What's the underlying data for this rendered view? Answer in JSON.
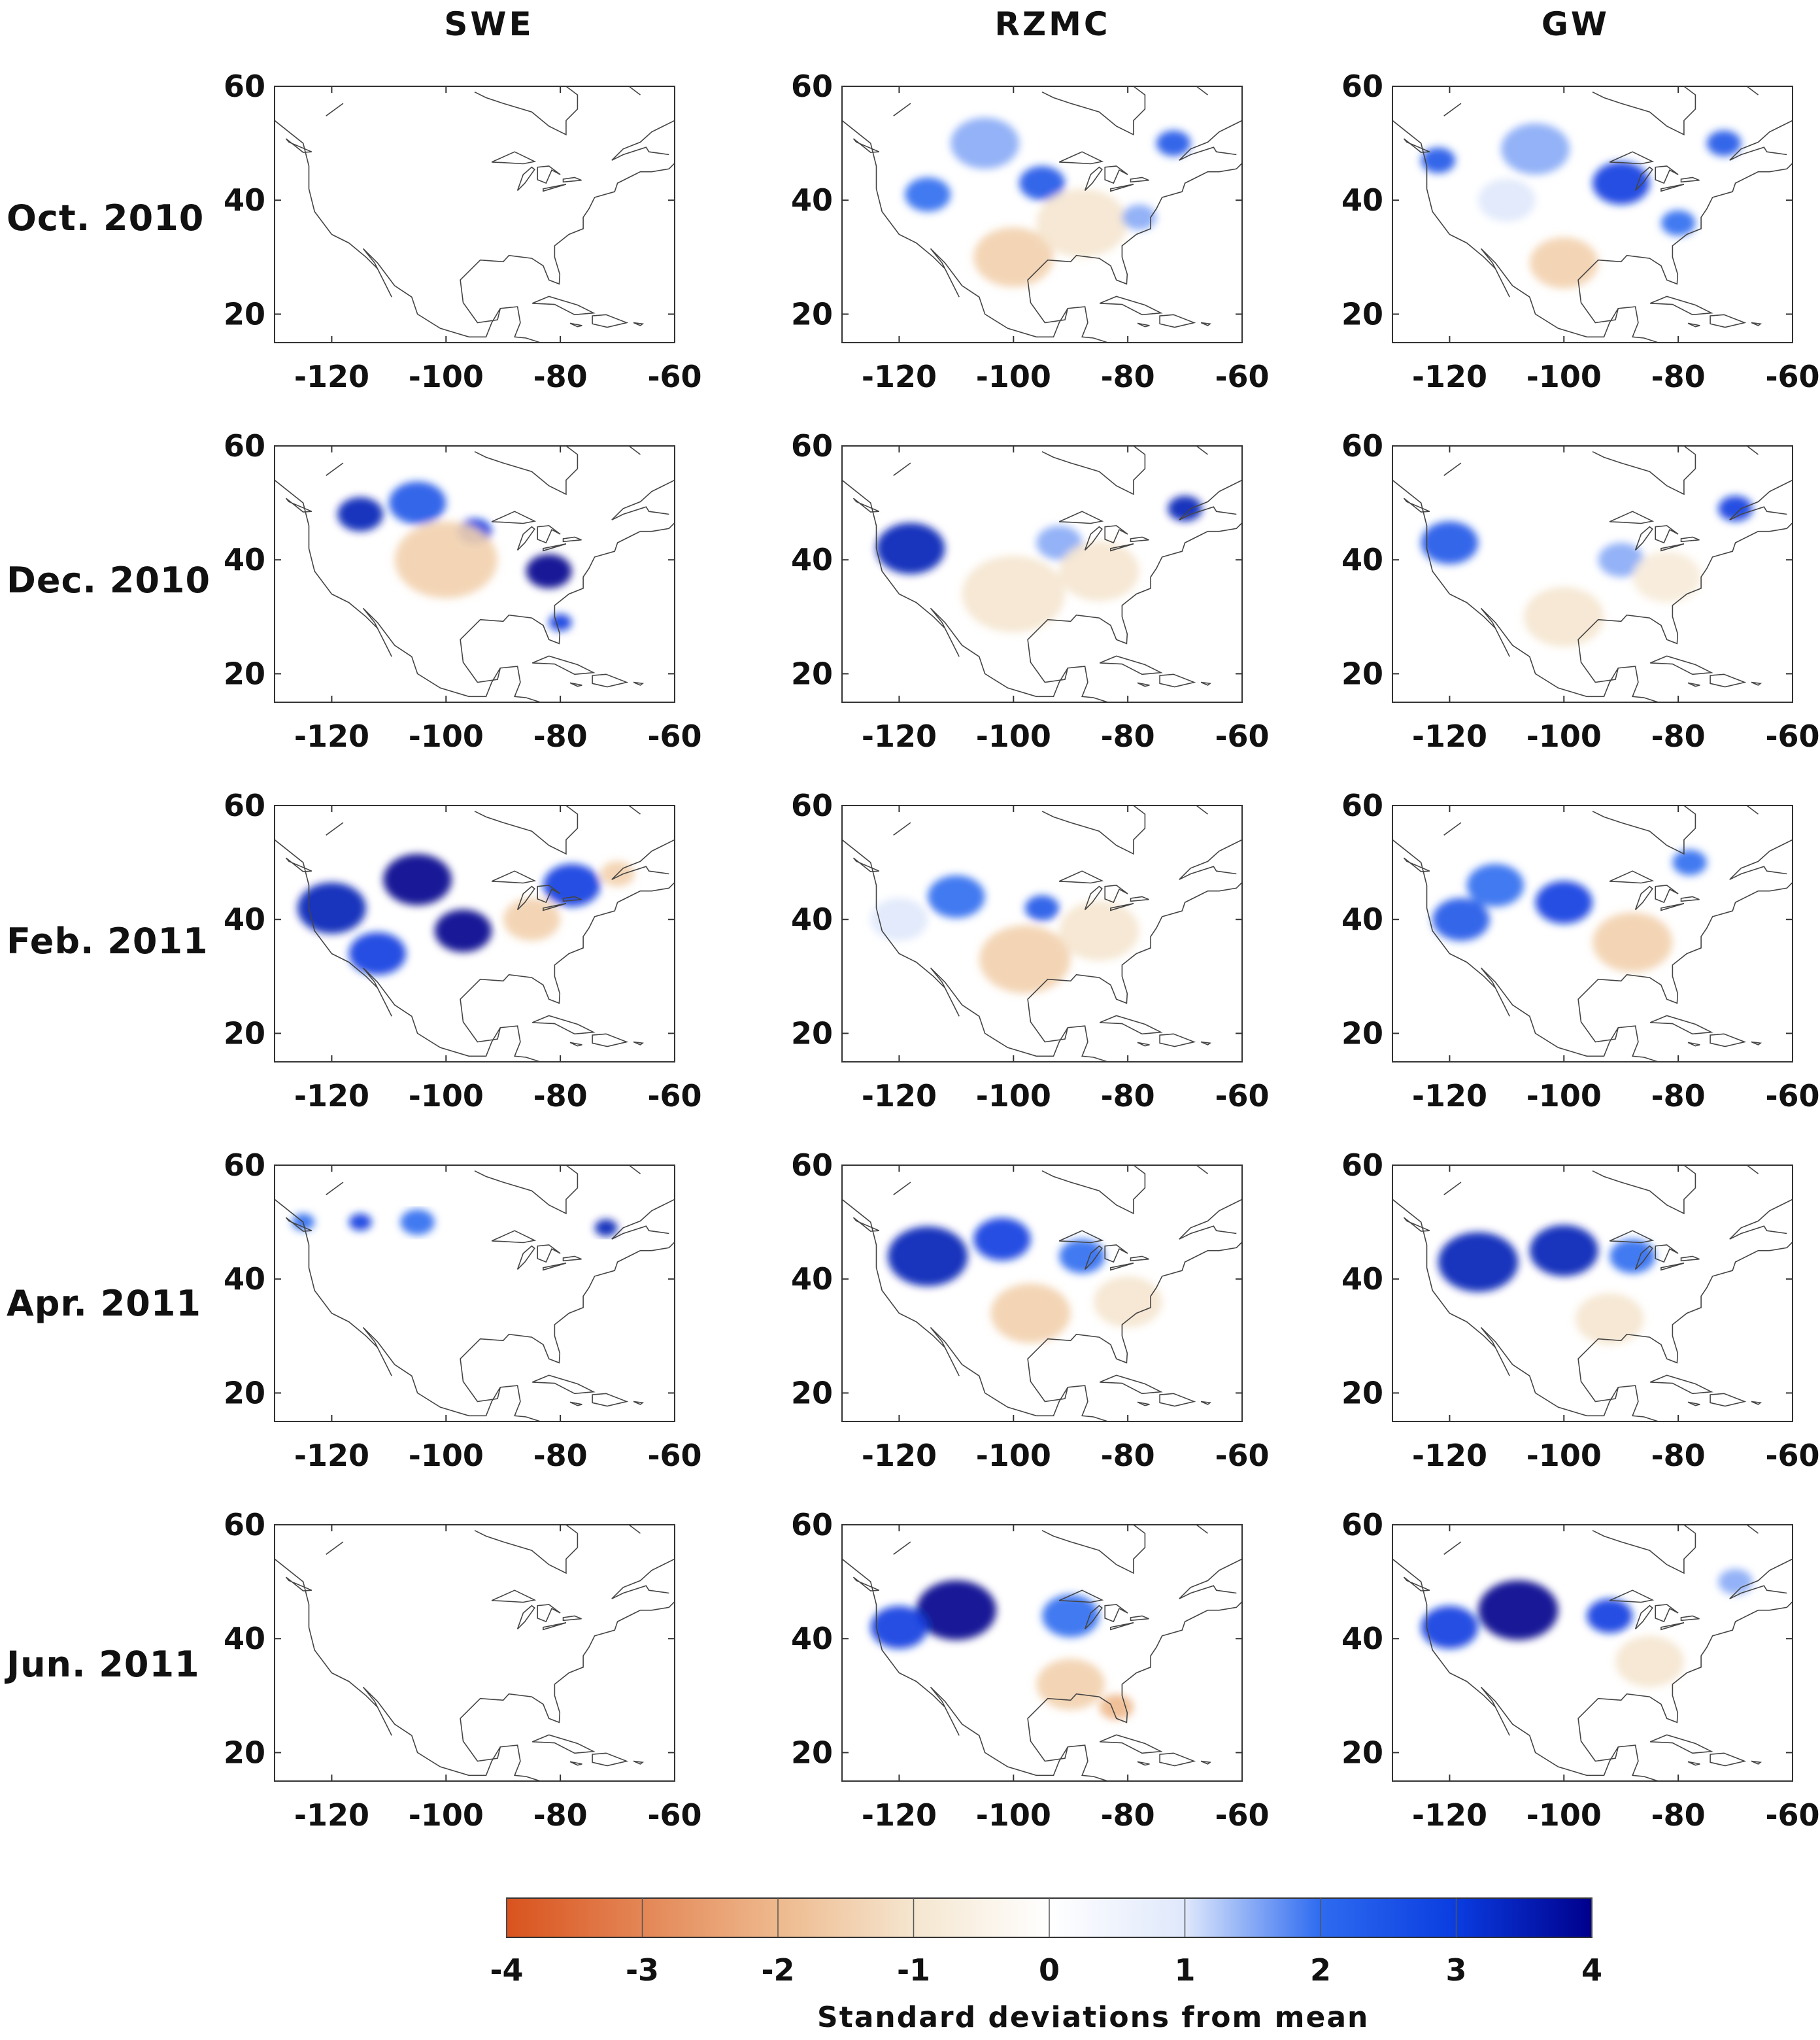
{
  "chart_data": {
    "type": "heatmap",
    "description_kind": "small-multiples anomaly maps",
    "columns": [
      "SWE",
      "RZMC",
      "GW"
    ],
    "rows": [
      "Oct. 2010",
      "Dec. 2010",
      "Feb. 2011",
      "Apr. 2011",
      "Jun. 2011"
    ],
    "xticks": [
      -120,
      -100,
      -80,
      -60
    ],
    "yticks": [
      20,
      40,
      60
    ],
    "xlim": [
      -130,
      -60
    ],
    "ylim": [
      15,
      60
    ],
    "colorbar": {
      "label": "Standard deviations from mean",
      "ticks": [
        -4,
        -3,
        -2,
        -1,
        0,
        1,
        2,
        3,
        4
      ],
      "range": [
        -4,
        4
      ],
      "colors": {
        "neg_strong": "#d9531e",
        "neg_light": "#f5e6cf",
        "zero": "#ffffff",
        "pos_light": "#dfe8fb",
        "pos_mid": "#2e6bf0",
        "pos_strong": "#00008c"
      }
    },
    "anomalies": [
      {
        "row": 0,
        "col": 0,
        "blobs": []
      },
      {
        "row": 0,
        "col": 1,
        "blobs": [
          {
            "lon": -115,
            "lat": 41,
            "value": 2.0,
            "r": 4
          },
          {
            "lon": -95,
            "lat": 43,
            "value": 2.5,
            "r": 4
          },
          {
            "lon": -72,
            "lat": 50,
            "value": 2.5,
            "r": 3
          },
          {
            "lon": -105,
            "lat": 50,
            "value": 1.5,
            "r": 6
          },
          {
            "lon": -100,
            "lat": 30,
            "value": -1.5,
            "r": 7
          },
          {
            "lon": -88,
            "lat": 36,
            "value": -1.0,
            "r": 8
          },
          {
            "lon": -78,
            "lat": 37,
            "value": 1.5,
            "r": 3
          }
        ]
      },
      {
        "row": 0,
        "col": 2,
        "blobs": [
          {
            "lon": -122,
            "lat": 47,
            "value": 2.5,
            "r": 3
          },
          {
            "lon": -90,
            "lat": 43,
            "value": 3.0,
            "r": 5
          },
          {
            "lon": -72,
            "lat": 50,
            "value": 2.5,
            "r": 3
          },
          {
            "lon": -105,
            "lat": 49,
            "value": 1.5,
            "r": 6
          },
          {
            "lon": -100,
            "lat": 29,
            "value": -1.5,
            "r": 6
          },
          {
            "lon": -80,
            "lat": 36,
            "value": 2.0,
            "r": 3
          },
          {
            "lon": -110,
            "lat": 40,
            "value": 1.0,
            "r": 5
          }
        ]
      },
      {
        "row": 1,
        "col": 0,
        "blobs": [
          {
            "lon": -115,
            "lat": 48,
            "value": 3.5,
            "r": 4
          },
          {
            "lon": -95,
            "lat": 45,
            "value": 3.0,
            "r": 3
          },
          {
            "lon": -82,
            "lat": 38,
            "value": 4.0,
            "r": 4
          },
          {
            "lon": -100,
            "lat": 40,
            "value": -1.5,
            "r": 9
          },
          {
            "lon": -80,
            "lat": 29,
            "value": 3.0,
            "r": 2
          },
          {
            "lon": -105,
            "lat": 50,
            "value": 2.5,
            "r": 5
          }
        ]
      },
      {
        "row": 1,
        "col": 1,
        "blobs": [
          {
            "lon": -118,
            "lat": 42,
            "value": 3.5,
            "r": 6
          },
          {
            "lon": -70,
            "lat": 49,
            "value": 3.5,
            "r": 3
          },
          {
            "lon": -92,
            "lat": 43,
            "value": 1.5,
            "r": 4
          },
          {
            "lon": -100,
            "lat": 34,
            "value": -1.0,
            "r": 9
          },
          {
            "lon": -85,
            "lat": 38,
            "value": -1.0,
            "r": 7
          }
        ]
      },
      {
        "row": 1,
        "col": 2,
        "blobs": [
          {
            "lon": -120,
            "lat": 43,
            "value": 2.5,
            "r": 5
          },
          {
            "lon": -70,
            "lat": 49,
            "value": 3.0,
            "r": 3
          },
          {
            "lon": -90,
            "lat": 40,
            "value": 1.5,
            "r": 4
          },
          {
            "lon": -100,
            "lat": 30,
            "value": -1.0,
            "r": 7
          },
          {
            "lon": -82,
            "lat": 37,
            "value": -0.8,
            "r": 6
          }
        ]
      },
      {
        "row": 2,
        "col": 0,
        "blobs": [
          {
            "lon": -120,
            "lat": 42,
            "value": 3.5,
            "r": 6
          },
          {
            "lon": -105,
            "lat": 47,
            "value": 4.0,
            "r": 6
          },
          {
            "lon": -97,
            "lat": 38,
            "value": 4.0,
            "r": 5
          },
          {
            "lon": -78,
            "lat": 46,
            "value": 3.0,
            "r": 5
          },
          {
            "lon": -112,
            "lat": 34,
            "value": 3.0,
            "r": 5
          },
          {
            "lon": -85,
            "lat": 40,
            "value": -1.5,
            "r": 5
          },
          {
            "lon": -70,
            "lat": 48,
            "value": -1.5,
            "r": 3
          }
        ]
      },
      {
        "row": 2,
        "col": 1,
        "blobs": [
          {
            "lon": -110,
            "lat": 44,
            "value": 2.0,
            "r": 5
          },
          {
            "lon": -95,
            "lat": 42,
            "value": 2.5,
            "r": 3
          },
          {
            "lon": -98,
            "lat": 33,
            "value": -1.5,
            "r": 8
          },
          {
            "lon": -85,
            "lat": 38,
            "value": -1.0,
            "r": 7
          },
          {
            "lon": -120,
            "lat": 40,
            "value": 1.0,
            "r": 5
          }
        ]
      },
      {
        "row": 2,
        "col": 2,
        "blobs": [
          {
            "lon": -100,
            "lat": 43,
            "value": 3.0,
            "r": 5
          },
          {
            "lon": -118,
            "lat": 40,
            "value": 2.5,
            "r": 5
          },
          {
            "lon": -112,
            "lat": 46,
            "value": 2.0,
            "r": 5
          },
          {
            "lon": -88,
            "lat": 36,
            "value": -1.5,
            "r": 7
          },
          {
            "lon": -78,
            "lat": 50,
            "value": 2.0,
            "r": 3
          }
        ]
      },
      {
        "row": 3,
        "col": 0,
        "blobs": [
          {
            "lon": -115,
            "lat": 50,
            "value": 3.0,
            "r": 2
          },
          {
            "lon": -72,
            "lat": 49,
            "value": 3.5,
            "r": 2
          },
          {
            "lon": -105,
            "lat": 50,
            "value": 2.0,
            "r": 3
          },
          {
            "lon": -125,
            "lat": 50,
            "value": 2.0,
            "r": 2
          }
        ]
      },
      {
        "row": 3,
        "col": 1,
        "blobs": [
          {
            "lon": -115,
            "lat": 44,
            "value": 3.5,
            "r": 7
          },
          {
            "lon": -102,
            "lat": 47,
            "value": 3.0,
            "r": 5
          },
          {
            "lon": -88,
            "lat": 44,
            "value": 2.0,
            "r": 4
          },
          {
            "lon": -97,
            "lat": 34,
            "value": -1.5,
            "r": 7
          },
          {
            "lon": -80,
            "lat": 36,
            "value": -1.0,
            "r": 6
          }
        ]
      },
      {
        "row": 3,
        "col": 2,
        "blobs": [
          {
            "lon": -115,
            "lat": 43,
            "value": 3.5,
            "r": 7
          },
          {
            "lon": -100,
            "lat": 45,
            "value": 3.5,
            "r": 6
          },
          {
            "lon": -88,
            "lat": 44,
            "value": 2.0,
            "r": 4
          },
          {
            "lon": -92,
            "lat": 33,
            "value": -1.0,
            "r": 6
          }
        ]
      },
      {
        "row": 4,
        "col": 0,
        "blobs": []
      },
      {
        "row": 4,
        "col": 1,
        "blobs": [
          {
            "lon": -110,
            "lat": 45,
            "value": 4.0,
            "r": 7
          },
          {
            "lon": -120,
            "lat": 42,
            "value": 3.0,
            "r": 5
          },
          {
            "lon": -90,
            "lat": 44,
            "value": 2.0,
            "r": 5
          },
          {
            "lon": -90,
            "lat": 32,
            "value": -1.5,
            "r": 6
          },
          {
            "lon": -82,
            "lat": 28,
            "value": -2.0,
            "r": 3
          }
        ]
      },
      {
        "row": 4,
        "col": 2,
        "blobs": [
          {
            "lon": -108,
            "lat": 45,
            "value": 4.0,
            "r": 7
          },
          {
            "lon": -120,
            "lat": 42,
            "value": 3.0,
            "r": 5
          },
          {
            "lon": -92,
            "lat": 44,
            "value": 3.0,
            "r": 4
          },
          {
            "lon": -85,
            "lat": 36,
            "value": -1.0,
            "r": 6
          },
          {
            "lon": -70,
            "lat": 50,
            "value": 1.5,
            "r": 3
          }
        ]
      }
    ]
  }
}
